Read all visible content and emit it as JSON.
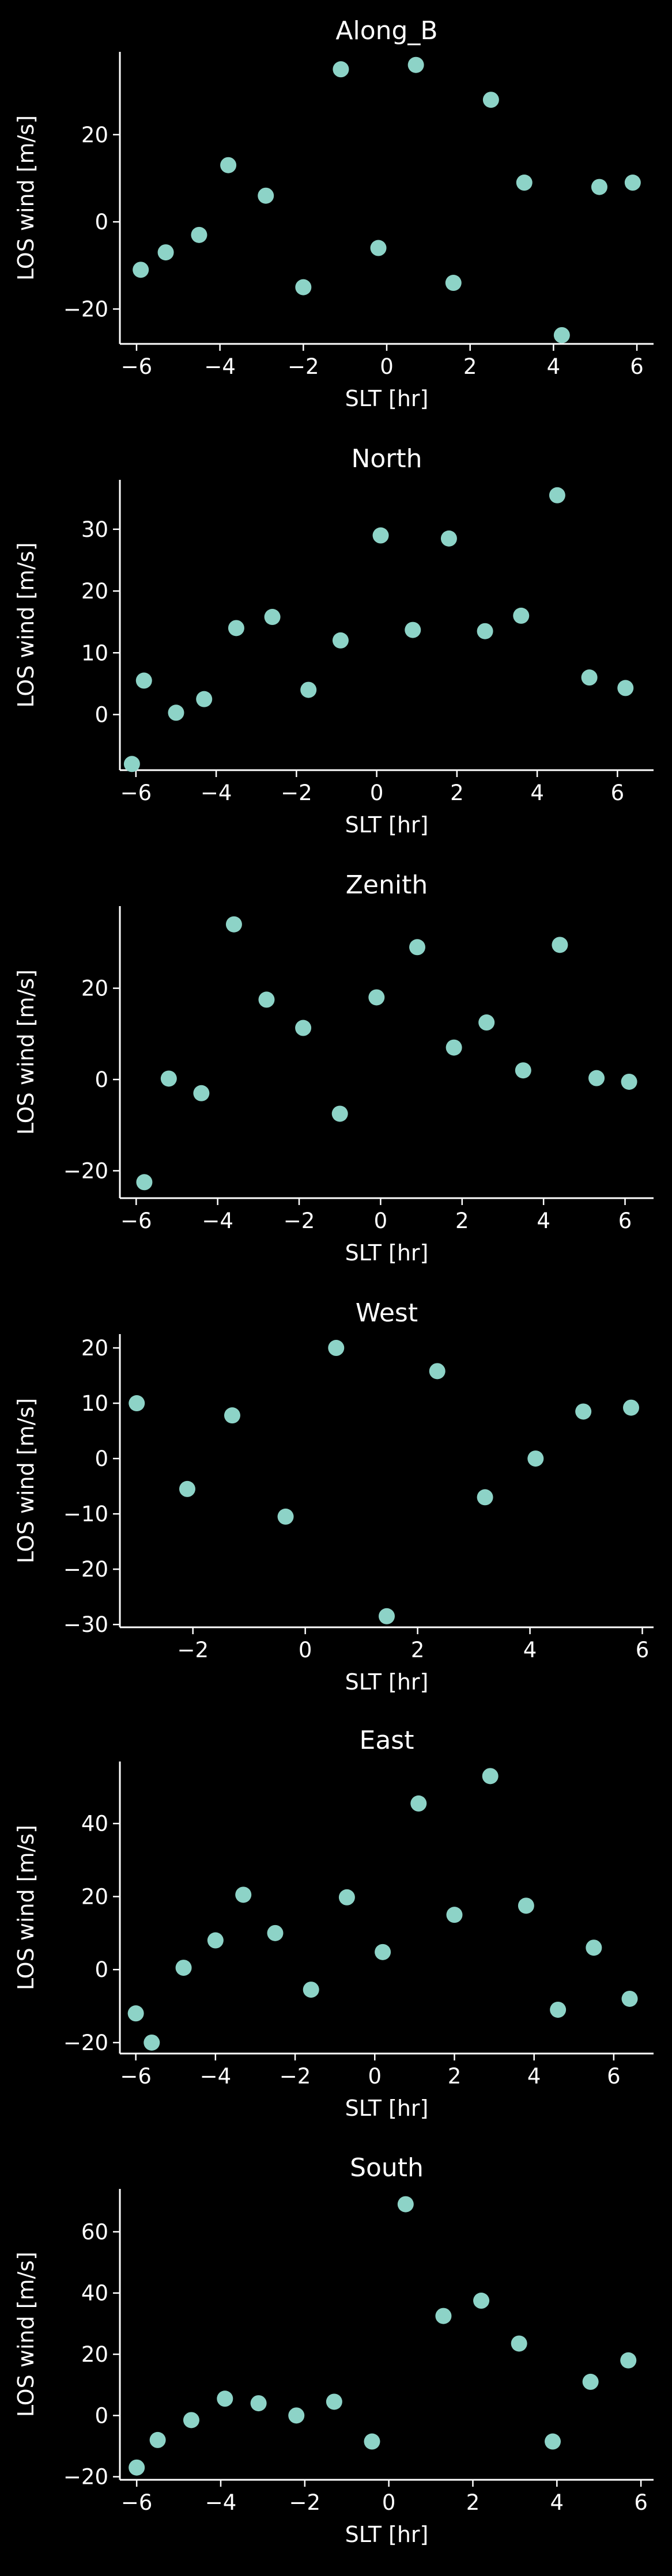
{
  "colors": {
    "background": "#000000",
    "axis": "#ffffff",
    "text": "#ffffff",
    "marker": "#8dd3c7"
  },
  "chart_data": [
    {
      "type": "scatter",
      "title": "Along_B",
      "xlabel": "SLT [hr]",
      "ylabel": "LOS wind [m/s]",
      "xlim": [
        -6.4,
        6.4
      ],
      "ylim": [
        -28,
        39
      ],
      "xticks": [
        -6,
        -4,
        -2,
        0,
        2,
        4,
        6
      ],
      "yticks": [
        -20,
        0,
        20
      ],
      "grid": false,
      "x": [
        -5.9,
        -5.3,
        -4.5,
        -3.8,
        -2.9,
        -2.0,
        -1.1,
        -0.2,
        0.7,
        1.6,
        2.5,
        3.3,
        4.2,
        5.1,
        5.9
      ],
      "y": [
        -11,
        -7,
        -3,
        13,
        6,
        -15,
        35,
        -6,
        36,
        -14,
        28,
        9,
        -26,
        8,
        9
      ]
    },
    {
      "type": "scatter",
      "title": "North",
      "xlabel": "SLT [hr]",
      "ylabel": "LOS wind [m/s]",
      "xlim": [
        -6.4,
        6.9
      ],
      "ylim": [
        -9,
        38
      ],
      "xticks": [
        -6,
        -4,
        -2,
        0,
        2,
        4,
        6
      ],
      "yticks": [
        0,
        10,
        20,
        30
      ],
      "grid": false,
      "x": [
        -6.1,
        -5.8,
        -5.0,
        -4.3,
        -3.5,
        -2.6,
        -1.7,
        -0.9,
        0.1,
        0.9,
        1.8,
        2.7,
        3.6,
        4.5,
        5.3,
        6.2
      ],
      "y": [
        -8,
        5.5,
        0.3,
        2.5,
        14,
        15.8,
        4,
        12,
        29,
        13.7,
        28.5,
        13.5,
        16,
        35.5,
        6,
        4.3
      ]
    },
    {
      "type": "scatter",
      "title": "Zenith",
      "xlabel": "SLT [hr]",
      "ylabel": "LOS wind [m/s]",
      "xlim": [
        -6.4,
        6.7
      ],
      "ylim": [
        -26,
        38
      ],
      "xticks": [
        -6,
        -4,
        -2,
        0,
        2,
        4,
        6
      ],
      "yticks": [
        -20,
        0,
        20
      ],
      "grid": false,
      "x": [
        -5.8,
        -5.2,
        -4.4,
        -3.6,
        -2.8,
        -1.9,
        -1.0,
        -0.1,
        0.9,
        1.8,
        2.6,
        3.5,
        4.4,
        5.3,
        6.1
      ],
      "y": [
        -22.5,
        0.2,
        -3,
        34,
        17.5,
        11.3,
        -7.5,
        18,
        29,
        7,
        12.5,
        2,
        29.5,
        0.3,
        -0.5
      ]
    },
    {
      "type": "scatter",
      "title": "West",
      "xlabel": "SLT [hr]",
      "ylabel": "LOS wind [m/s]",
      "xlim": [
        -3.3,
        6.2
      ],
      "ylim": [
        -30.5,
        22.5
      ],
      "xticks": [
        -2,
        0,
        2,
        4,
        6
      ],
      "yticks": [
        -30,
        -20,
        -10,
        0,
        10,
        20
      ],
      "grid": false,
      "x": [
        -3.0,
        -2.1,
        -1.3,
        -0.35,
        0.55,
        1.45,
        2.35,
        3.2,
        4.1,
        4.95,
        5.8
      ],
      "y": [
        10,
        -5.5,
        7.8,
        -10.5,
        20,
        -28.5,
        15.8,
        -7,
        0,
        8.5,
        9.2
      ]
    },
    {
      "type": "scatter",
      "title": "East",
      "xlabel": "SLT [hr]",
      "ylabel": "LOS wind [m/s]",
      "xlim": [
        -6.4,
        7.0
      ],
      "ylim": [
        -23,
        57
      ],
      "xticks": [
        -6,
        -4,
        -2,
        0,
        2,
        4,
        6
      ],
      "yticks": [
        -20,
        0,
        20,
        40
      ],
      "grid": false,
      "x": [
        -6.0,
        -5.6,
        -4.8,
        -4.0,
        -3.3,
        -2.5,
        -1.6,
        -0.7,
        0.2,
        1.1,
        2.0,
        2.9,
        3.8,
        4.6,
        5.5,
        6.4
      ],
      "y": [
        -12,
        -20,
        0.5,
        8,
        20.5,
        10,
        -5.5,
        19.8,
        4.8,
        45.5,
        15,
        53,
        17.5,
        -11,
        6,
        -8
      ]
    },
    {
      "type": "scatter",
      "title": "South",
      "xlabel": "SLT [hr]",
      "ylabel": "LOS wind [m/s]",
      "xlim": [
        -6.4,
        6.3
      ],
      "ylim": [
        -21,
        74
      ],
      "xticks": [
        -6,
        -4,
        -2,
        0,
        2,
        4,
        6
      ],
      "yticks": [
        -20,
        0,
        20,
        40,
        60
      ],
      "grid": false,
      "x": [
        -6.0,
        -5.5,
        -4.7,
        -3.9,
        -3.1,
        -2.2,
        -1.3,
        -0.4,
        0.4,
        1.3,
        2.2,
        3.1,
        3.9,
        4.8,
        5.7
      ],
      "y": [
        -17,
        -8,
        -1.5,
        5.5,
        4,
        0,
        4.5,
        -8.5,
        69,
        32.5,
        37.5,
        23.5,
        -8.5,
        11,
        18
      ]
    }
  ]
}
